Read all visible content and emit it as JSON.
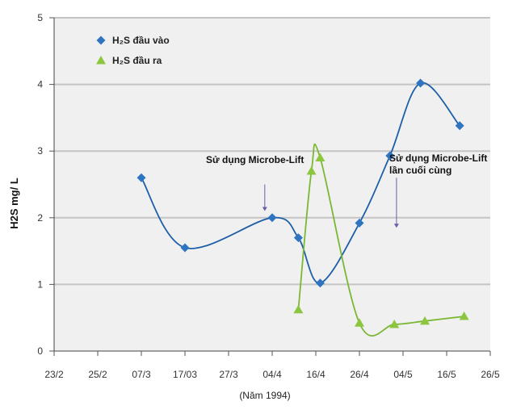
{
  "chart_data": {
    "type": "line",
    "xlabel": "(Năm 1994)",
    "ylabel": "H2S  mg/ L",
    "ylim": [
      0,
      5
    ],
    "yticks": [
      0,
      1,
      2,
      3,
      4,
      5
    ],
    "grid": "horizontal",
    "legend_position": "top-left",
    "x_tick_labels": [
      "23/2",
      "25/2",
      "07/3",
      "17/03",
      "27/3",
      "04/4",
      "16/4",
      "26/4",
      "04/5",
      "16/5",
      "26/5"
    ],
    "x_index_range": [
      0,
      10
    ],
    "series": [
      {
        "name": "H₂S đầu vào",
        "marker": "diamond",
        "color": "#2f74c0",
        "line_color": "#1f5fa8",
        "points": [
          {
            "x": 2.0,
            "y": 2.6
          },
          {
            "x": 3.0,
            "y": 1.55
          },
          {
            "x": 5.0,
            "y": 2.0
          },
          {
            "x": 5.6,
            "y": 1.7
          },
          {
            "x": 6.1,
            "y": 1.02
          },
          {
            "x": 7.0,
            "y": 1.92
          },
          {
            "x": 7.7,
            "y": 2.93
          },
          {
            "x": 8.4,
            "y": 4.02
          },
          {
            "x": 9.3,
            "y": 3.38
          }
        ]
      },
      {
        "name": "H₂S đầu ra",
        "marker": "triangle",
        "color": "#8cc63f",
        "line_color": "#7ab733",
        "points": [
          {
            "x": 5.6,
            "y": 0.62
          },
          {
            "x": 5.9,
            "y": 2.7
          },
          {
            "x": 6.1,
            "y": 2.9
          },
          {
            "x": 7.0,
            "y": 0.42
          },
          {
            "x": 7.8,
            "y": 0.4
          },
          {
            "x": 8.5,
            "y": 0.45
          },
          {
            "x": 9.4,
            "y": 0.52
          }
        ]
      }
    ],
    "annotations": [
      {
        "lines": [
          "Sử dụng Microbe-Lift"
        ],
        "arrow_x": 4.83,
        "arrow_y_from": 2.5,
        "arrow_y_to": 2.1
      },
      {
        "lines": [
          "Sử dụng Microbe-Lift",
          "lần cuối cùng"
        ],
        "arrow_x": 7.85,
        "arrow_y_from": 2.6,
        "arrow_y_to": 1.85
      }
    ]
  }
}
